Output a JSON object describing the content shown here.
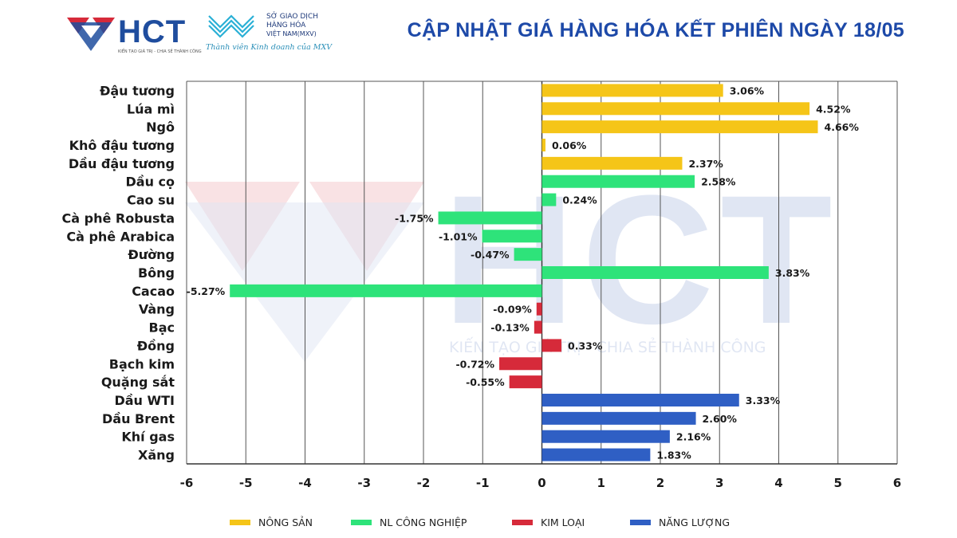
{
  "header": {
    "title": "CẬP NHẬT GIÁ HÀNG HÓA KẾT PHIÊN NGÀY 18/05",
    "hct_logo_text": "HCT",
    "hct_slogan": "KIẾN TẠO GIÁ TRỊ - CHIA SẺ THÀNH CÔNG",
    "mxv_line1": "SỞ GIAO DỊCH",
    "mxv_line2": "HÀNG HÓA",
    "mxv_line3": "VIỆT NAM(MXV)",
    "mxv_member": "Thành viên Kinh doanh của MXV"
  },
  "watermark": {
    "logo_text": "HCT",
    "slogan": "KIẾN TẠO GIÁ TRỊ - CHIA SẺ THÀNH CÔNG"
  },
  "colors": {
    "nong_san": "#f5c518",
    "nl_cong_nghiep": "#2ee37a",
    "kim_loai": "#d62a3a",
    "nang_luong": "#2f5fc4",
    "title": "#1d49a8"
  },
  "legend": [
    {
      "label": "NÔNG SẢN",
      "color": "#f5c518"
    },
    {
      "label": "NL CÔNG NGHIỆP",
      "color": "#2ee37a"
    },
    {
      "label": "KIM LOẠI",
      "color": "#d62a3a"
    },
    {
      "label": "NĂNG LƯỢNG",
      "color": "#2f5fc4"
    }
  ],
  "chart_data": {
    "type": "bar",
    "orientation": "horizontal",
    "xlim": [
      -6,
      6
    ],
    "ticks": [
      -6,
      -5,
      -4,
      -3,
      -2,
      -1,
      0,
      1,
      2,
      3,
      4,
      5,
      6
    ],
    "tick_labels": [
      "-6",
      "-5",
      "-4",
      "-3",
      "-2",
      "-1",
      "0",
      "1",
      "2",
      "3",
      "4",
      "5",
      "6"
    ],
    "grid": true,
    "legend_position": "bottom",
    "categories": [
      "Đậu tương",
      "Lúa mì",
      "Ngô",
      "Khô đậu tương",
      "Dầu đậu tương",
      "Dầu cọ",
      "Cao su",
      "Cà phê Robusta",
      "Cà phê Arabica",
      "Đường",
      "Bông",
      "Cacao",
      "Vàng",
      "Bạc",
      "Đồng",
      "Bạch kim",
      "Quặng sắt",
      "Dầu WTI",
      "Dầu Brent",
      "Khí gas",
      "Xăng"
    ],
    "values": [
      3.06,
      4.52,
      4.66,
      0.06,
      2.37,
      2.58,
      0.24,
      -1.75,
      -1.01,
      -0.47,
      3.83,
      -5.27,
      -0.09,
      -0.13,
      0.33,
      -0.72,
      -0.55,
      3.33,
      2.6,
      2.16,
      1.83
    ],
    "value_labels": [
      "3.06%",
      "4.52%",
      "4.66%",
      "0.06%",
      "2.37%",
      "2.58%",
      "0.24%",
      "-1.75%",
      "-1.01%",
      "-0.47%",
      "3.83%",
      "-5.27%",
      "-0.09%",
      "-0.13%",
      "0.33%",
      "-0.72%",
      "-0.55%",
      "3.33%",
      "2.60%",
      "2.16%",
      "1.83%"
    ],
    "groups": [
      "NÔNG SẢN",
      "NÔNG SẢN",
      "NÔNG SẢN",
      "NÔNG SẢN",
      "NÔNG SẢN",
      "NL CÔNG NGHIỆP",
      "NL CÔNG NGHIỆP",
      "NL CÔNG NGHIỆP",
      "NL CÔNG NGHIỆP",
      "NL CÔNG NGHIỆP",
      "NL CÔNG NGHIỆP",
      "NL CÔNG NGHIỆP",
      "KIM LOẠI",
      "KIM LOẠI",
      "KIM LOẠI",
      "KIM LOẠI",
      "KIM LOẠI",
      "NĂNG LƯỢNG",
      "NĂNG LƯỢNG",
      "NĂNG LƯỢNG",
      "NĂNG LƯỢNG"
    ]
  }
}
